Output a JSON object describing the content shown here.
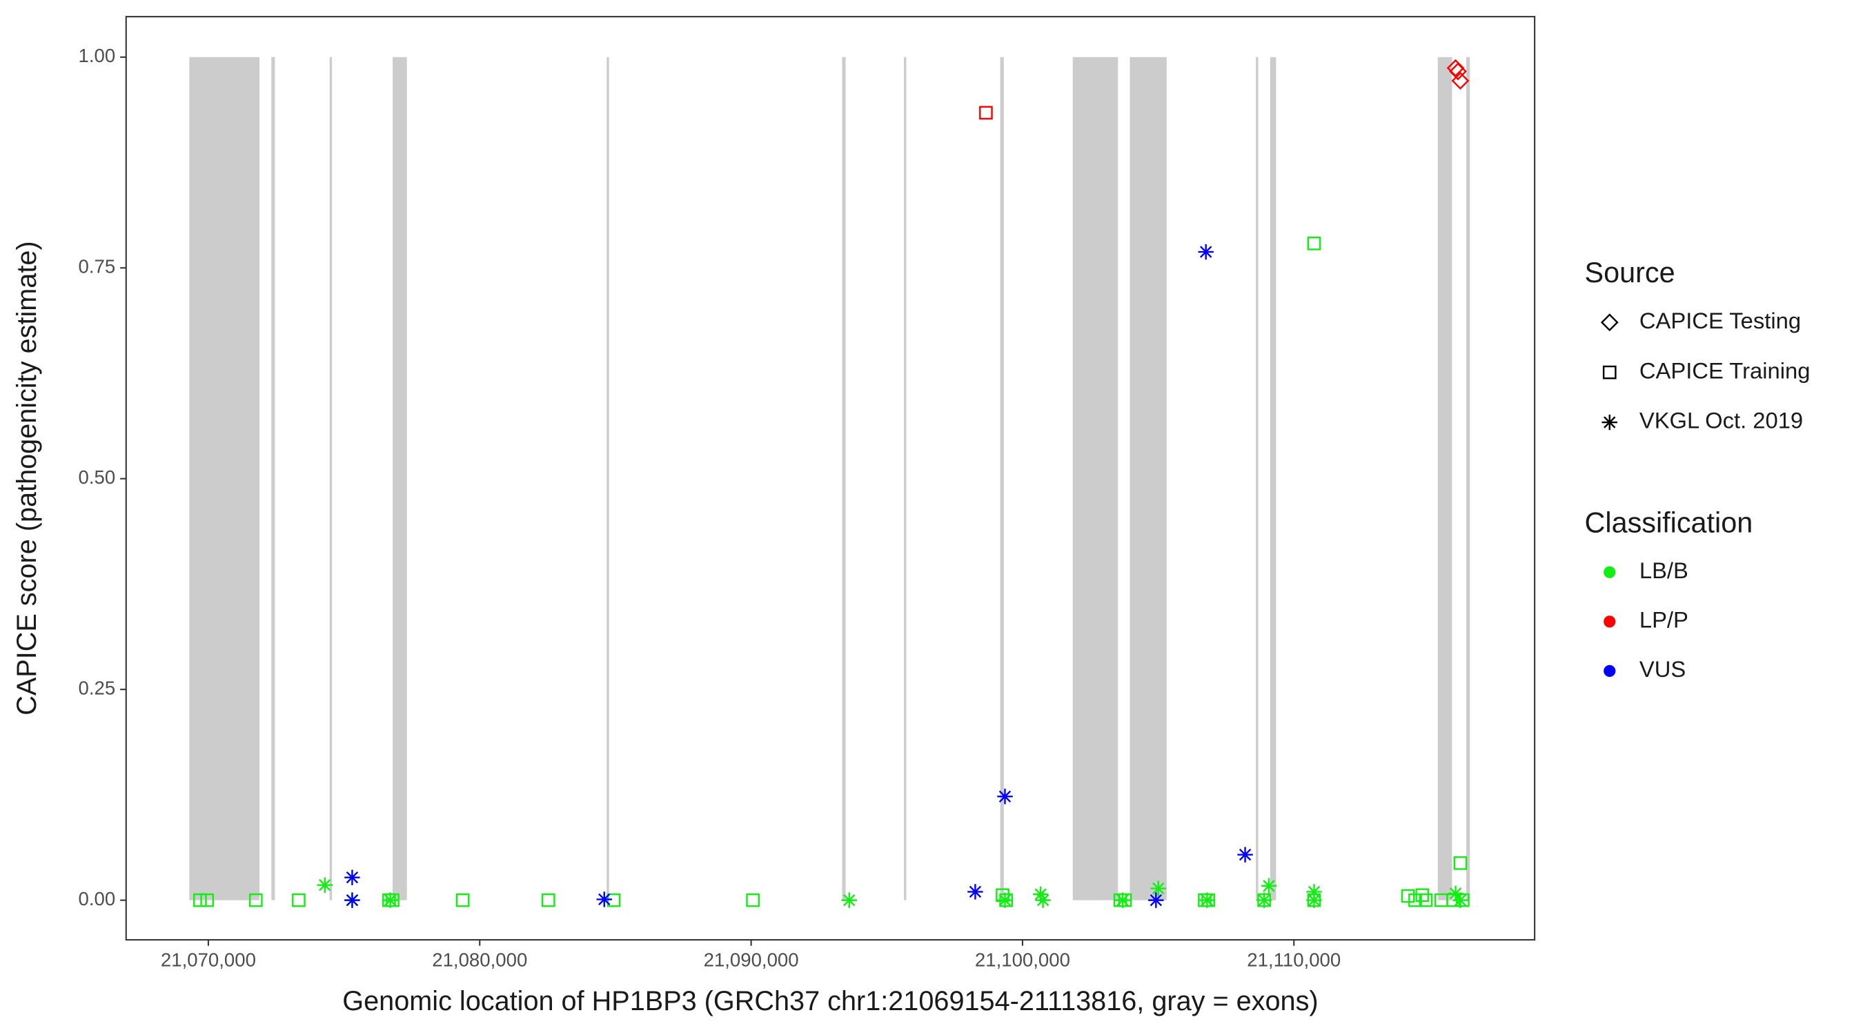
{
  "chart_data": {
    "type": "scatter",
    "x_label": "Genomic location of HP1BP3 (GRCh37 chr1:21069154-21113816, gray = exons)",
    "y_label": "CAPICE score (pathogenicity estimate)",
    "xlim": [
      21066970,
      21118870
    ],
    "ylim": [
      -0.047,
      1.048
    ],
    "xticks": [
      {
        "value": 21070000,
        "label": "21,070,000"
      },
      {
        "value": 21080000,
        "label": "21,080,000"
      },
      {
        "value": 21090000,
        "label": "21,090,000"
      },
      {
        "value": 21100000,
        "label": "21,100,000"
      },
      {
        "value": 21110000,
        "label": "21,110,000"
      }
    ],
    "yticks": [
      {
        "value": 0,
        "label": "0.00"
      },
      {
        "value": 0.25,
        "label": "0.25"
      },
      {
        "value": 0.5,
        "label": "0.50"
      },
      {
        "value": 0.75,
        "label": "0.75"
      },
      {
        "value": 1,
        "label": "1.00"
      }
    ],
    "grid": false,
    "exon_color": "#cccccc",
    "exon_y": [
      0,
      1
    ],
    "exons": [
      [
        21069299,
        21071884
      ],
      [
        21072322,
        21072453
      ],
      [
        21074469,
        21074556
      ],
      [
        21076791,
        21077316
      ],
      [
        21084677,
        21084765
      ],
      [
        21093352,
        21093483
      ],
      [
        21095630,
        21095718
      ],
      [
        21099179,
        21099310
      ],
      [
        21101852,
        21103516
      ],
      [
        21103954,
        21105312
      ],
      [
        21108598,
        21108686
      ],
      [
        21109124,
        21109343
      ],
      [
        21115301,
        21115826
      ],
      [
        21116351,
        21116483
      ]
    ],
    "shape_legend": {
      "title": "Source",
      "items": [
        {
          "name": "CAPICE Testing",
          "shape": "diamond"
        },
        {
          "name": "CAPICE Training",
          "shape": "square"
        },
        {
          "name": "VKGL Oct. 2019",
          "shape": "asterisk"
        }
      ]
    },
    "color_legend": {
      "title": "Classification",
      "items": [
        {
          "name": "LB/B",
          "color": "#11ee11"
        },
        {
          "name": "LP/P",
          "color": "#ff0000"
        },
        {
          "name": "VUS",
          "color": "#0000ff"
        }
      ]
    },
    "series": [
      {
        "source": "CAPICE Training",
        "classification": "LB/B",
        "x": [
          21069693,
          21069956,
          21071752,
          21073330,
          21076659,
          21076791,
          21079375,
          21082530,
          21084939,
          21090065,
          21099265,
          21099396,
          21103602,
          21103777,
          21106713,
          21106844,
          21108903,
          21110743,
          21110743,
          21114204,
          21114467,
          21114729,
          21114861,
          21115430,
          21115869,
          21116132,
          21116220
        ],
        "y": [
          0,
          0,
          0,
          0,
          0,
          0,
          0,
          0,
          0,
          0,
          0.006,
          0,
          0,
          0,
          0,
          0,
          0,
          0.779,
          0,
          0.005,
          0,
          0.006,
          0,
          0,
          0,
          0.044,
          0
        ]
      },
      {
        "source": "CAPICE Training",
        "classification": "LP/P",
        "x": [
          21098652
        ],
        "y": [
          0.934
        ]
      },
      {
        "source": "CAPICE Testing",
        "classification": "LP/P",
        "x": [
          21115957,
          21116045,
          21116132
        ],
        "y": [
          0.987,
          0.983,
          0.972
        ]
      },
      {
        "source": "VKGL Oct. 2019",
        "classification": "LB/B",
        "x": [
          21074293,
          21075301,
          21076703,
          21093614,
          21099353,
          21100667,
          21100755,
          21103690,
          21105004,
          21106800,
          21108903,
          21109078,
          21110743,
          21110743,
          21115957,
          21116132
        ],
        "y": [
          0.018,
          0,
          0,
          0,
          0,
          0.007,
          0,
          0,
          0.014,
          0,
          0,
          0.017,
          0.01,
          0,
          0.008,
          0
        ]
      },
      {
        "source": "VKGL Oct. 2019",
        "classification": "VUS",
        "x": [
          21075301,
          21075301,
          21084589,
          21098258,
          21099353,
          21104917,
          21106757,
          21108203
        ],
        "y": [
          0.027,
          0,
          0.001,
          0.01,
          0.123,
          0,
          0.769,
          0.054
        ]
      }
    ]
  }
}
